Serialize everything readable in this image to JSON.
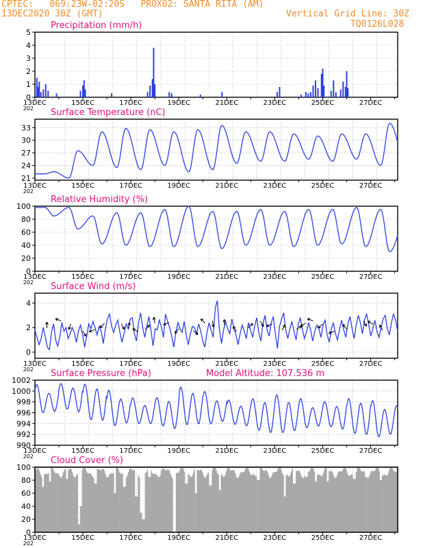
{
  "header": {
    "line1": "CPTEC:   069:23W-02:20S   PROX02: SANTA RITA (AM)",
    "line2_left": "13DEC2020 30Z (GMT)",
    "line2_right": "Vertical Grid Line: 30Z",
    "line3_right": "TQ0126L028"
  },
  "x_ticks": [
    "13DEC",
    "15DEC",
    "17DEC",
    "19DEC",
    "21DEC",
    "23DEC",
    "25DEC",
    "27DEC"
  ],
  "x_year_stub": "202",
  "colors": {
    "header": "#f08c2a",
    "title": "#e0107a",
    "line": "#2b3fe0",
    "cloud": "#a9a9a9",
    "grid": "#999999"
  },
  "chart_data": [
    {
      "id": "precip",
      "type": "bar",
      "title": "Precipitation (mm/h)",
      "ylim": [
        0,
        5
      ],
      "yticks": [
        "0",
        "1",
        "2",
        "3",
        "4",
        "5"
      ],
      "x_range_days": [
        13.0,
        28.125
      ],
      "events": [
        {
          "day": 13.08,
          "value": 1.5
        },
        {
          "day": 13.13,
          "value": 0.8
        },
        {
          "day": 13.18,
          "value": 1.2
        },
        {
          "day": 13.25,
          "value": 0.4
        },
        {
          "day": 13.35,
          "value": 0.6
        },
        {
          "day": 13.45,
          "value": 1.0
        },
        {
          "day": 13.55,
          "value": 0.5
        },
        {
          "day": 13.9,
          "value": 0.3
        },
        {
          "day": 14.9,
          "value": 0.5
        },
        {
          "day": 15.0,
          "value": 0.9
        },
        {
          "day": 15.05,
          "value": 1.3
        },
        {
          "day": 15.1,
          "value": 0.6
        },
        {
          "day": 16.2,
          "value": 0.3
        },
        {
          "day": 17.7,
          "value": 0.4
        },
        {
          "day": 17.8,
          "value": 0.9
        },
        {
          "day": 17.9,
          "value": 1.4
        },
        {
          "day": 17.95,
          "value": 3.8
        },
        {
          "day": 18.0,
          "value": 1.0
        },
        {
          "day": 18.6,
          "value": 0.4
        },
        {
          "day": 18.7,
          "value": 0.3
        },
        {
          "day": 19.9,
          "value": 0.2
        },
        {
          "day": 20.8,
          "value": 0.4
        },
        {
          "day": 23.1,
          "value": 0.4
        },
        {
          "day": 23.2,
          "value": 0.8
        },
        {
          "day": 24.1,
          "value": 0.2
        },
        {
          "day": 24.3,
          "value": 0.4
        },
        {
          "day": 24.4,
          "value": 0.3
        },
        {
          "day": 24.5,
          "value": 0.4
        },
        {
          "day": 24.6,
          "value": 0.9
        },
        {
          "day": 24.7,
          "value": 1.3
        },
        {
          "day": 24.8,
          "value": 0.7
        },
        {
          "day": 24.95,
          "value": 1.8
        },
        {
          "day": 25.0,
          "value": 2.2
        },
        {
          "day": 25.05,
          "value": 0.9
        },
        {
          "day": 25.35,
          "value": 0.5
        },
        {
          "day": 25.45,
          "value": 1.3
        },
        {
          "day": 25.55,
          "value": 0.4
        },
        {
          "day": 25.75,
          "value": 0.6
        },
        {
          "day": 25.85,
          "value": 1.2
        },
        {
          "day": 25.95,
          "value": 0.8
        },
        {
          "day": 26.0,
          "value": 2.0
        },
        {
          "day": 26.05,
          "value": 0.7
        }
      ]
    },
    {
      "id": "temp",
      "type": "line",
      "title": "Surface Temperature (nC)",
      "ylim": [
        20.5,
        35
      ],
      "yticks": [
        "21",
        "24",
        "27",
        "30",
        "33"
      ],
      "ytick_values": [
        21,
        24,
        27,
        30,
        33
      ],
      "x_range_days": [
        13.0,
        28.125
      ],
      "diurnal": {
        "min_hour": 10,
        "max_hour": 19,
        "minima": [
          22.0,
          21.0,
          24.0,
          23.5,
          23.0,
          24.0,
          22.5,
          23.0,
          24.5,
          25.0,
          25.0,
          25.5,
          25.0,
          25.5,
          24.0,
          26.0
        ],
        "maxima": [
          22.5,
          27.5,
          32.0,
          32.8,
          32.5,
          32.0,
          32.5,
          33.5,
          32.0,
          32.0,
          31.5,
          31.0,
          31.5,
          31.5,
          34.0,
          33.0
        ]
      }
    },
    {
      "id": "rh",
      "type": "line",
      "title": "Relative Humidity (%)",
      "ylim": [
        0,
        100
      ],
      "yticks": [
        "0",
        "20",
        "40",
        "60",
        "80",
        "100"
      ],
      "ytick_values": [
        0,
        20,
        40,
        60,
        80,
        100
      ],
      "x_range_days": [
        13.0,
        28.125
      ],
      "diurnal": {
        "min_hour": 19,
        "max_hour": 10,
        "minima": [
          85,
          65,
          42,
          40,
          38,
          38,
          38,
          35,
          40,
          40,
          38,
          40,
          42,
          38,
          30,
          38
        ],
        "maxima": [
          98,
          98,
          85,
          90,
          90,
          95,
          100,
          92,
          92,
          95,
          92,
          95,
          95,
          98,
          95,
          75
        ]
      }
    },
    {
      "id": "wind",
      "type": "line",
      "title": "Surface Wind (m/s)",
      "ylim": [
        -0.5,
        4.8
      ],
      "yticks": [
        "0",
        "2",
        "4"
      ],
      "ytick_values": [
        0,
        2,
        4
      ],
      "x_range_days": [
        13.0,
        28.125
      ],
      "values": [
        1.8,
        1.2,
        0.6,
        1.1,
        2.0,
        1.3,
        0.4,
        0.2,
        1.6,
        2.3,
        1.0,
        0.5,
        1.2,
        2.4,
        1.7,
        2.0,
        1.1,
        1.5,
        2.0,
        1.6,
        0.8,
        1.7,
        2.2,
        1.4,
        0.4,
        1.3,
        2.3,
        1.9,
        2.5,
        2.0,
        1.4,
        2.1,
        1.7,
        0.7,
        1.9,
        2.7,
        3.1,
        2.1,
        1.6,
        2.2,
        2.6,
        1.6,
        0.8,
        1.5,
        2.3,
        1.9,
        2.7,
        2.8,
        1.5,
        0.9,
        2.4,
        3.2,
        2.0,
        1.2,
        2.1,
        2.9,
        1.8,
        0.5,
        1.9,
        1.8,
        2.6,
        2.1,
        1.2,
        3.1,
        2.5,
        2.0,
        1.3,
        0.4,
        1.6,
        2.4,
        1.9,
        1.6,
        2.5,
        1.4,
        0.6,
        1.5,
        2.1,
        2.0,
        1.5,
        2.3,
        1.7,
        0.9,
        0.4,
        1.6,
        2.4,
        1.8,
        1.2,
        3.6,
        4.2,
        1.9,
        0.7,
        1.8,
        2.5,
        1.9,
        1.5,
        2.7,
        2.0,
        1.4,
        0.6,
        1.5,
        2.2,
        1.7,
        1.1,
        2.4,
        1.8,
        1.2,
        2.1,
        2.8,
        1.6,
        0.9,
        2.3,
        3.0,
        1.8,
        1.3,
        2.4,
        2.9,
        1.5,
        0.3,
        2.1,
        2.7,
        3.2,
        1.8,
        1.1,
        1.9,
        2.5,
        1.7,
        1.0,
        2.2,
        2.8,
        1.9,
        1.1,
        1.6,
        2.4,
        1.8,
        0.9,
        1.7,
        2.2,
        1.9,
        1.2,
        2.2,
        2.6,
        1.4,
        0.8,
        1.9,
        2.4,
        1.5,
        1.0,
        1.9,
        2.6,
        1.8,
        1.2,
        2.3,
        2.9,
        1.9,
        1.1,
        2.2,
        3.0,
        2.4,
        1.5,
        2.6,
        3.1,
        2.3,
        1.3,
        1.9,
        2.6,
        1.7,
        1.2,
        2.0,
        2.7,
        3.0,
        1.9,
        1.4,
        2.4,
        3.1,
        2.6,
        1.7
      ],
      "arrows": [
        {
          "day": 13.5,
          "dir": 90
        },
        {
          "day": 14.1,
          "dir": 160
        },
        {
          "day": 14.5,
          "dir": 250
        },
        {
          "day": 15.0,
          "dir": 300
        },
        {
          "day": 15.5,
          "dir": 200
        },
        {
          "day": 15.9,
          "dir": 225
        },
        {
          "day": 16.6,
          "dir": 300
        },
        {
          "day": 16.9,
          "dir": 80
        },
        {
          "day": 17.3,
          "dir": 150
        },
        {
          "day": 17.6,
          "dir": 45
        },
        {
          "day": 18.0,
          "dir": 100
        },
        {
          "day": 18.6,
          "dir": 200
        },
        {
          "day": 19.0,
          "dir": 230
        },
        {
          "day": 19.6,
          "dir": 320
        },
        {
          "day": 20.1,
          "dir": 135
        },
        {
          "day": 20.4,
          "dir": 280
        },
        {
          "day": 20.9,
          "dir": 90
        },
        {
          "day": 21.4,
          "dir": 120
        },
        {
          "day": 21.9,
          "dir": 45
        },
        {
          "day": 22.4,
          "dir": 300
        },
        {
          "day": 22.9,
          "dir": 200
        },
        {
          "day": 23.3,
          "dir": 60
        },
        {
          "day": 23.9,
          "dir": 30
        },
        {
          "day": 24.3,
          "dir": 210
        },
        {
          "day": 24.6,
          "dir": 160
        },
        {
          "day": 25.0,
          "dir": 220
        },
        {
          "day": 25.5,
          "dir": 200
        },
        {
          "day": 26.0,
          "dir": 130
        },
        {
          "day": 26.7,
          "dir": 300
        },
        {
          "day": 27.1,
          "dir": 150
        },
        {
          "day": 27.5,
          "dir": 120
        }
      ]
    },
    {
      "id": "pres",
      "type": "line",
      "title": "Surface Pressure (hPa)",
      "annotation": "Model Altitude: 107.536 m",
      "ylim": [
        990,
        1002
      ],
      "yticks": [
        "990",
        "992",
        "994",
        "996",
        "998",
        "1000",
        "1002"
      ],
      "ytick_values": [
        990,
        992,
        994,
        996,
        998,
        1000,
        1002
      ],
      "x_range_days": [
        13.0,
        28.125
      ],
      "semidiurnal": {
        "base": [
          998.2,
          998.8,
          997.8,
          996.5,
          996.0,
          996.0,
          997.0,
          996.5,
          995.8,
          995.5,
          995.5,
          995.5,
          995.5,
          995.2,
          994.5,
          994.5
        ],
        "amplitude": 3.2
      }
    },
    {
      "id": "cloud",
      "type": "area",
      "title": "Cloud Cover (%)",
      "ylim": [
        0,
        100
      ],
      "yticks": [
        "0",
        "20",
        "40",
        "60",
        "80",
        "100"
      ],
      "ytick_values": [
        0,
        20,
        40,
        60,
        80,
        100
      ],
      "x_range_days": [
        13.0,
        28.125
      ],
      "typical": 92,
      "dips": [
        {
          "day": 13.3,
          "value": 70
        },
        {
          "day": 13.6,
          "value": 78
        },
        {
          "day": 14.3,
          "value": 82
        },
        {
          "day": 14.8,
          "value": 12
        },
        {
          "day": 14.9,
          "value": 40
        },
        {
          "day": 15.5,
          "value": 75
        },
        {
          "day": 16.3,
          "value": 60
        },
        {
          "day": 16.7,
          "value": 70
        },
        {
          "day": 17.2,
          "value": 55
        },
        {
          "day": 17.4,
          "value": 30
        },
        {
          "day": 17.5,
          "value": 20
        },
        {
          "day": 17.75,
          "value": 85
        },
        {
          "day": 18.2,
          "value": 88
        },
        {
          "day": 18.8,
          "value": 0
        },
        {
          "day": 19.3,
          "value": 75
        },
        {
          "day": 19.7,
          "value": 60
        },
        {
          "day": 20.3,
          "value": 72
        },
        {
          "day": 20.7,
          "value": 65
        },
        {
          "day": 21.4,
          "value": 85
        },
        {
          "day": 22.3,
          "value": 80
        },
        {
          "day": 23.4,
          "value": 55
        },
        {
          "day": 23.8,
          "value": 75
        },
        {
          "day": 24.3,
          "value": 85
        },
        {
          "day": 24.7,
          "value": 78
        },
        {
          "day": 25.2,
          "value": 78
        },
        {
          "day": 26.3,
          "value": 82
        },
        {
          "day": 26.8,
          "value": 85
        },
        {
          "day": 27.4,
          "value": 80
        }
      ]
    }
  ]
}
